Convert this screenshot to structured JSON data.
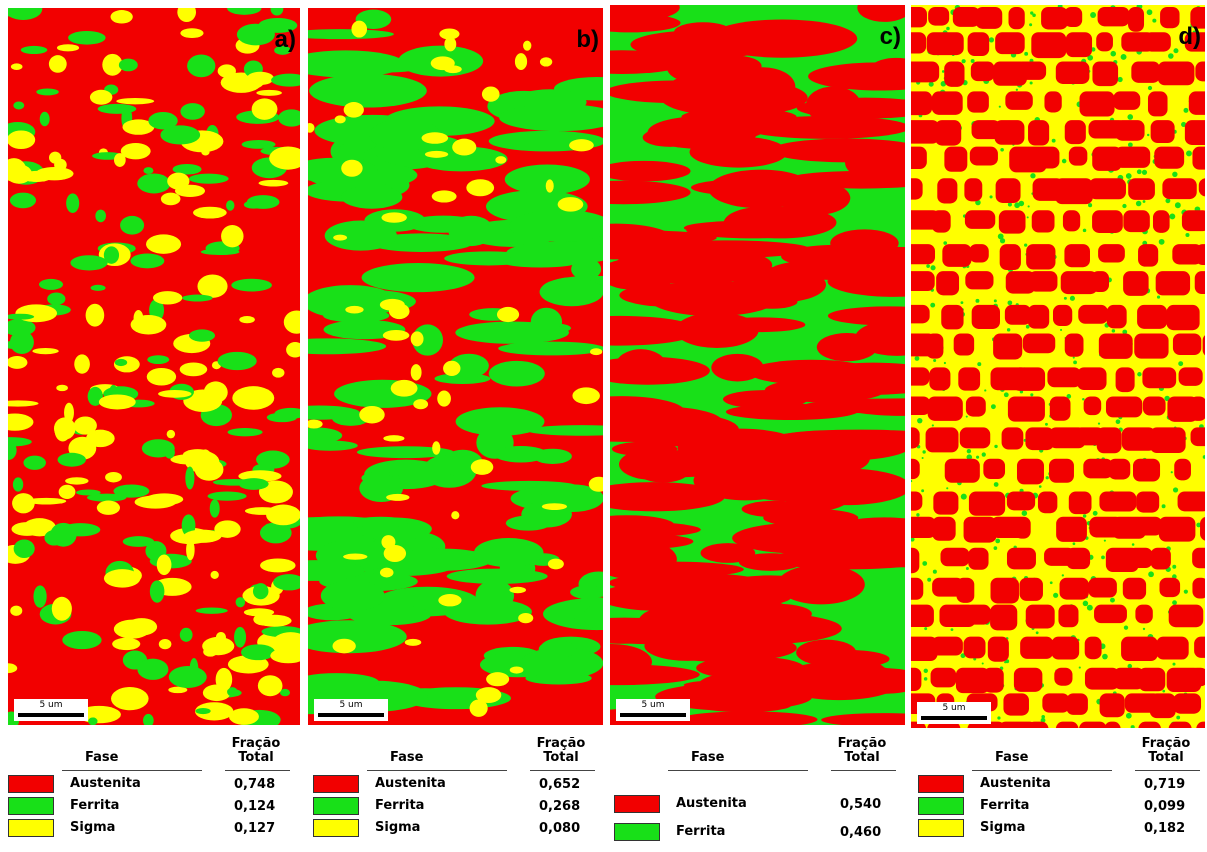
{
  "panels": [
    {
      "label": "a)",
      "scale_bar": "5 um",
      "table": {
        "header": {
          "phase": "Fase",
          "fraction_line1": "Fração",
          "fraction_line2": "Total"
        },
        "rows": [
          {
            "name": "Austenita",
            "fraction": "0,748"
          },
          {
            "name": "Ferrita",
            "fraction": "0,124"
          },
          {
            "name": "Sigma",
            "fraction": "0,127"
          }
        ]
      }
    },
    {
      "label": "b)",
      "scale_bar": "5 um",
      "table": {
        "header": {
          "phase": "Fase",
          "fraction_line1": "Fração",
          "fraction_line2": "Total"
        },
        "rows": [
          {
            "name": "Austenita",
            "fraction": "0,652"
          },
          {
            "name": "Ferrita",
            "fraction": "0,268"
          },
          {
            "name": "Sigma",
            "fraction": "0,080"
          }
        ]
      }
    },
    {
      "label": "c)",
      "scale_bar": "5 um",
      "table": {
        "header": {
          "phase": "Fase",
          "fraction_line1": "Fração",
          "fraction_line2": "Total"
        },
        "rows": [
          {
            "name": "Austenita",
            "fraction": "0,540"
          },
          {
            "name": "Ferrita",
            "fraction": "0,460"
          }
        ]
      }
    },
    {
      "label": "d)",
      "scale_bar": "5 um",
      "table": {
        "header": {
          "phase": "Fase",
          "fraction_line1": "Fração",
          "fraction_line2": "Total"
        },
        "rows": [
          {
            "name": "Austenita",
            "fraction": "0,719"
          },
          {
            "name": "Ferrita",
            "fraction": "0,099"
          },
          {
            "name": "Sigma",
            "fraction": "0,182"
          }
        ]
      }
    }
  ]
}
